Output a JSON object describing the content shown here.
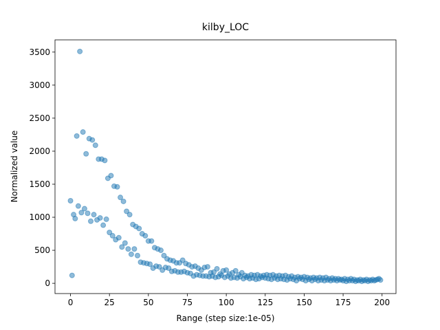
{
  "chart_data": {
    "type": "scatter",
    "title": "kilby_LOC",
    "x_label": "Range (step size:1e-05)",
    "y_label": "Normalized value",
    "xlim": [
      -9.95,
      208.95
    ],
    "ylim": [
      -155,
      3685
    ],
    "xticks": [
      0,
      25,
      50,
      75,
      100,
      125,
      150,
      175,
      200
    ],
    "yticks": [
      0,
      500,
      1000,
      1500,
      2000,
      2500,
      3000,
      3500
    ],
    "color": "#1f77b4",
    "alpha": 0.5,
    "grid": false,
    "x": [
      0,
      1,
      2,
      3,
      4,
      5,
      6,
      7,
      8,
      9,
      10,
      11,
      12,
      13,
      14,
      15,
      16,
      17,
      18,
      19,
      20,
      21,
      22,
      23,
      24,
      25,
      26,
      27,
      28,
      29,
      30,
      31,
      32,
      33,
      34,
      35,
      36,
      37,
      38,
      39,
      40,
      41,
      42,
      43,
      44,
      45,
      46,
      47,
      48,
      49,
      50,
      51,
      52,
      53,
      54,
      55,
      56,
      57,
      58,
      59,
      60,
      61,
      62,
      63,
      64,
      65,
      66,
      67,
      68,
      69,
      70,
      71,
      72,
      73,
      74,
      75,
      76,
      77,
      78,
      79,
      80,
      81,
      82,
      83,
      84,
      85,
      86,
      87,
      88,
      89,
      90,
      91,
      92,
      93,
      94,
      95,
      96,
      97,
      98,
      99,
      100,
      101,
      102,
      103,
      104,
      105,
      106,
      107,
      108,
      109,
      110,
      111,
      112,
      113,
      114,
      115,
      116,
      117,
      118,
      119,
      120,
      121,
      122,
      123,
      124,
      125,
      126,
      127,
      128,
      129,
      130,
      131,
      132,
      133,
      134,
      135,
      136,
      137,
      138,
      139,
      140,
      141,
      142,
      143,
      144,
      145,
      146,
      147,
      148,
      149,
      150,
      151,
      152,
      153,
      154,
      155,
      156,
      157,
      158,
      159,
      160,
      161,
      162,
      163,
      164,
      165,
      166,
      167,
      168,
      169,
      170,
      171,
      172,
      173,
      174,
      175,
      176,
      177,
      178,
      179,
      180,
      181,
      182,
      183,
      184,
      185,
      186,
      187,
      188,
      189,
      190,
      191,
      192,
      193,
      194,
      195,
      196,
      197,
      198,
      199
    ],
    "values": [
      1250,
      120,
      1040,
      980,
      2230,
      1170,
      3510,
      1070,
      2290,
      1130,
      1960,
      1060,
      2190,
      940,
      2170,
      1040,
      2090,
      960,
      1880,
      990,
      1880,
      880,
      1860,
      970,
      1590,
      770,
      1630,
      720,
      1470,
      660,
      1460,
      690,
      1300,
      550,
      1240,
      610,
      1090,
      520,
      1040,
      440,
      890,
      520,
      860,
      420,
      830,
      320,
      750,
      310,
      720,
      300,
      640,
      290,
      640,
      230,
      540,
      260,
      520,
      250,
      500,
      200,
      420,
      240,
      370,
      230,
      350,
      180,
      340,
      190,
      310,
      170,
      310,
      170,
      350,
      180,
      300,
      160,
      280,
      150,
      250,
      110,
      260,
      130,
      230,
      120,
      200,
      110,
      240,
      110,
      250,
      100,
      160,
      110,
      170,
      90,
      220,
      100,
      140,
      120,
      190,
      90,
      200,
      110,
      140,
      80,
      160,
      90,
      190,
      80,
      130,
      100,
      160,
      70,
      120,
      90,
      110,
      70,
      130,
      80,
      120,
      60,
      130,
      70,
      110,
      90,
      120,
      80,
      130,
      70,
      120,
      60,
      130,
      80,
      110,
      60,
      120,
      70,
      110,
      60,
      120,
      50,
      100,
      70,
      110,
      60,
      90,
      40,
      100,
      70,
      90,
      60,
      100,
      40,
      90,
      60,
      80,
      40,
      90,
      60,
      80,
      40,
      90,
      50,
      80,
      40,
      90,
      50,
      70,
      40,
      80,
      50,
      70,
      40,
      70,
      50,
      60,
      40,
      70,
      30,
      60,
      40,
      70,
      40,
      60,
      30,
      50,
      40,
      60,
      30,
      50,
      40,
      60,
      30,
      50,
      40,
      60,
      40,
      50,
      60,
      70,
      50
    ]
  }
}
